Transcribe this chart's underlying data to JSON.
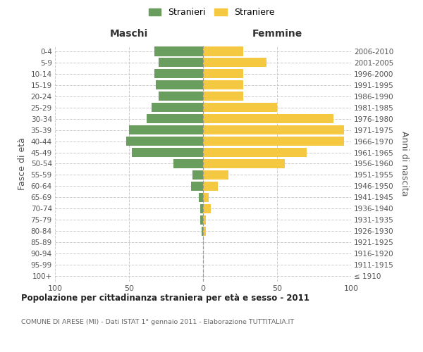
{
  "age_groups": [
    "100+",
    "95-99",
    "90-94",
    "85-89",
    "80-84",
    "75-79",
    "70-74",
    "65-69",
    "60-64",
    "55-59",
    "50-54",
    "45-49",
    "40-44",
    "35-39",
    "30-34",
    "25-29",
    "20-24",
    "15-19",
    "10-14",
    "5-9",
    "0-4"
  ],
  "birth_years": [
    "≤ 1910",
    "1911-1915",
    "1916-1920",
    "1921-1925",
    "1926-1930",
    "1931-1935",
    "1936-1940",
    "1941-1945",
    "1946-1950",
    "1951-1955",
    "1956-1960",
    "1961-1965",
    "1966-1970",
    "1971-1975",
    "1976-1980",
    "1981-1985",
    "1986-1990",
    "1991-1995",
    "1996-2000",
    "2001-2005",
    "2006-2010"
  ],
  "maschi": [
    0,
    0,
    0,
    0,
    1,
    2,
    2,
    3,
    8,
    7,
    20,
    48,
    52,
    50,
    38,
    35,
    30,
    32,
    33,
    30,
    33
  ],
  "femmine": [
    0,
    0,
    0,
    0,
    2,
    2,
    5,
    4,
    10,
    17,
    55,
    70,
    95,
    95,
    88,
    50,
    27,
    27,
    27,
    43,
    27
  ],
  "maschi_color": "#6a9e5e",
  "femmine_color": "#f5c842",
  "background_color": "#ffffff",
  "grid_color": "#cccccc",
  "title": "Popolazione per cittadinanza straniera per età e sesso - 2011",
  "subtitle": "COMUNE DI ARESE (MI) - Dati ISTAT 1° gennaio 2011 - Elaborazione TUTTITALIA.IT",
  "ylabel_left": "Fasce di età",
  "ylabel_right": "Anni di nascita",
  "col_maschi": "Maschi",
  "col_femmine": "Femmine",
  "legend_maschi": "Stranieri",
  "legend_femmine": "Straniere",
  "xlim": 100,
  "bar_height": 0.82
}
